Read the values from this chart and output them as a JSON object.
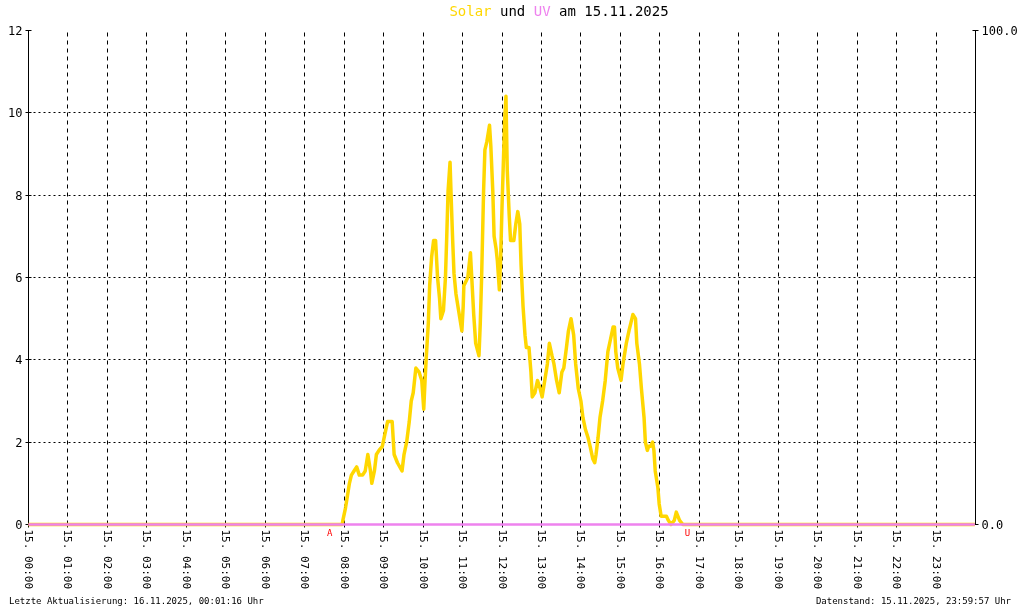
{
  "chart_data": {
    "type": "line",
    "title": "Solar und UV am 15.11.2025",
    "xlim": [
      "2025-11-15T00:00",
      "2025-11-16T00:00"
    ],
    "ylim": [
      0,
      12
    ],
    "yticks": [
      0,
      2,
      4,
      6,
      8,
      10,
      12
    ],
    "y2lim": [
      0,
      100
    ],
    "y2ticks": [
      {
        "value": 0,
        "label": "0.0"
      },
      {
        "value": 100,
        "label": "100.0"
      }
    ],
    "xticks": [
      {
        "value": "2025-11-15T00:00",
        "label": "15. 00:00"
      },
      {
        "value": "2025-11-15T01:00",
        "label": "15. 01:00"
      },
      {
        "value": "2025-11-15T02:00",
        "label": "15. 02:00"
      },
      {
        "value": "2025-11-15T03:00",
        "label": "15. 03:00"
      },
      {
        "value": "2025-11-15T04:00",
        "label": "15. 04:00"
      },
      {
        "value": "2025-11-15T05:00",
        "label": "15. 05:00"
      },
      {
        "value": "2025-11-15T06:00",
        "label": "15. 06:00"
      },
      {
        "value": "2025-11-15T07:00",
        "label": "15. 07:00"
      },
      {
        "value": "2025-11-15T08:00",
        "label": "15. 08:00"
      },
      {
        "value": "2025-11-15T09:00",
        "label": "15. 09:00"
      },
      {
        "value": "2025-11-15T10:00",
        "label": "15. 10:00"
      },
      {
        "value": "2025-11-15T11:00",
        "label": "15. 11:00"
      },
      {
        "value": "2025-11-15T12:00",
        "label": "15. 12:00"
      },
      {
        "value": "2025-11-15T13:00",
        "label": "15. 13:00"
      },
      {
        "value": "2025-11-15T14:00",
        "label": "15. 14:00"
      },
      {
        "value": "2025-11-15T15:00",
        "label": "15. 15:00"
      },
      {
        "value": "2025-11-15T16:00",
        "label": "15. 16:00"
      },
      {
        "value": "2025-11-15T17:00",
        "label": "15. 17:00"
      },
      {
        "value": "2025-11-15T18:00",
        "label": "15. 18:00"
      },
      {
        "value": "2025-11-15T19:00",
        "label": "15. 19:00"
      },
      {
        "value": "2025-11-15T20:00",
        "label": "15. 20:00"
      },
      {
        "value": "2025-11-15T21:00",
        "label": "15. 21:00"
      },
      {
        "value": "2025-11-15T22:00",
        "label": "15. 22:00"
      },
      {
        "value": "2025-11-15T23:00",
        "label": "15. 23:00"
      }
    ],
    "grid": true,
    "series": [
      {
        "color": "#ffd700",
        "x": [
          "2025-11-15T00:00",
          "2025-11-15T07:57",
          "2025-11-15T07:58",
          "2025-11-15T08:02",
          "2025-11-15T08:05",
          "2025-11-15T08:08",
          "2025-11-15T08:11",
          "2025-11-15T08:15",
          "2025-11-15T08:19",
          "2025-11-15T08:23",
          "2025-11-15T08:28",
          "2025-11-15T08:32",
          "2025-11-15T08:36",
          "2025-11-15T08:40",
          "2025-11-15T08:42",
          "2025-11-15T08:46",
          "2025-11-15T08:49",
          "2025-11-15T08:53",
          "2025-11-15T08:58",
          "2025-11-15T09:02",
          "2025-11-15T09:06",
          "2025-11-15T09:13",
          "2025-11-15T09:16",
          "2025-11-15T09:21",
          "2025-11-15T09:28",
          "2025-11-15T09:31",
          "2025-11-15T09:35",
          "2025-11-15T09:39",
          "2025-11-15T09:42",
          "2025-11-15T09:45",
          "2025-11-15T09:49",
          "2025-11-15T09:54",
          "2025-11-15T09:58",
          "2025-11-15T10:01",
          "2025-11-15T10:03",
          "2025-11-15T10:05",
          "2025-11-15T10:08",
          "2025-11-15T10:10",
          "2025-11-15T10:13",
          "2025-11-15T10:16",
          "2025-11-15T10:19",
          "2025-11-15T10:22",
          "2025-11-15T10:25",
          "2025-11-15T10:27",
          "2025-11-15T10:31",
          "2025-11-15T10:34",
          "2025-11-15T10:36",
          "2025-11-15T10:38",
          "2025-11-15T10:41",
          "2025-11-15T10:43",
          "2025-11-15T10:45",
          "2025-11-15T10:47",
          "2025-11-15T10:50",
          "2025-11-15T10:54",
          "2025-11-15T10:59",
          "2025-11-15T11:01",
          "2025-11-15T11:02",
          "2025-11-15T11:08",
          "2025-11-15T11:12",
          "2025-11-15T11:14",
          "2025-11-15T11:17",
          "2025-11-15T11:20",
          "2025-11-15T11:25",
          "2025-11-15T11:27",
          "2025-11-15T11:29",
          "2025-11-15T11:32",
          "2025-11-15T11:34",
          "2025-11-15T11:37",
          "2025-11-15T11:41",
          "2025-11-15T11:43",
          "2025-11-15T11:46",
          "2025-11-15T11:48",
          "2025-11-15T11:51",
          "2025-11-15T11:53",
          "2025-11-15T11:56",
          "2025-11-15T11:58",
          "2025-11-15T12:00",
          "2025-11-15T12:04",
          "2025-11-15T12:06",
          "2025-11-15T12:08",
          "2025-11-15T12:11",
          "2025-11-15T12:13",
          "2025-11-15T12:18",
          "2025-11-15T12:21",
          "2025-11-15T12:24",
          "2025-11-15T12:27",
          "2025-11-15T12:29",
          "2025-11-15T12:32",
          "2025-11-15T12:35",
          "2025-11-15T12:37",
          "2025-11-15T12:41",
          "2025-11-15T12:44",
          "2025-11-15T12:46",
          "2025-11-15T12:50",
          "2025-11-15T12:54",
          "2025-11-15T12:58",
          "2025-11-15T13:01",
          "2025-11-15T13:05",
          "2025-11-15T13:09",
          "2025-11-15T13:12",
          "2025-11-15T13:16",
          "2025-11-15T13:19",
          "2025-11-15T13:23",
          "2025-11-15T13:27",
          "2025-11-15T13:31",
          "2025-11-15T13:34",
          "2025-11-15T13:38",
          "2025-11-15T13:41",
          "2025-11-15T13:45",
          "2025-11-15T13:49",
          "2025-11-15T13:52",
          "2025-11-15T13:56",
          "2025-11-15T14:00",
          "2025-11-15T14:03",
          "2025-11-15T14:07",
          "2025-11-15T14:11",
          "2025-11-15T14:14",
          "2025-11-15T14:18",
          "2025-11-15T14:21",
          "2025-11-15T14:23",
          "2025-11-15T14:26",
          "2025-11-15T14:29",
          "2025-11-15T14:33",
          "2025-11-15T14:37",
          "2025-11-15T14:41",
          "2025-11-15T14:45",
          "2025-11-15T14:49",
          "2025-11-15T14:51",
          "2025-11-15T14:53",
          "2025-11-15T14:56",
          "2025-11-15T15:01",
          "2025-11-15T15:04",
          "2025-11-15T15:07",
          "2025-11-15T15:09",
          "2025-11-15T15:13",
          "2025-11-15T15:16",
          "2025-11-15T15:19",
          "2025-11-15T15:23",
          "2025-11-15T15:25",
          "2025-11-15T15:29",
          "2025-11-15T15:32",
          "2025-11-15T15:36",
          "2025-11-15T15:38",
          "2025-11-15T15:41",
          "2025-11-15T15:43",
          "2025-11-15T15:46",
          "2025-11-15T15:49",
          "2025-11-15T15:51",
          "2025-11-15T15:53",
          "2025-11-15T15:57",
          "2025-11-15T15:59",
          "2025-11-15T16:02",
          "2025-11-15T16:07",
          "2025-11-15T16:10",
          "2025-11-15T16:13",
          "2025-11-15T16:17",
          "2025-11-15T16:22",
          "2025-11-15T16:25",
          "2025-11-15T16:30",
          "2025-11-15T16:35",
          "2025-11-15T23:59"
        ],
        "values": [
          0,
          0,
          0.1,
          0.4,
          0.7,
          1.0,
          1.2,
          1.3,
          1.4,
          1.2,
          1.2,
          1.3,
          1.7,
          1.3,
          1.0,
          1.3,
          1.7,
          1.8,
          1.9,
          2.2,
          2.5,
          2.5,
          1.7,
          1.5,
          1.3,
          1.7,
          2.0,
          2.5,
          3.0,
          3.2,
          3.8,
          3.7,
          3.5,
          2.8,
          3.5,
          4.1,
          4.9,
          5.8,
          6.5,
          6.9,
          6.9,
          6.0,
          5.5,
          5.0,
          5.2,
          6.0,
          7.0,
          8.1,
          8.8,
          7.8,
          6.9,
          6.1,
          5.6,
          5.2,
          4.7,
          5.3,
          5.8,
          6.0,
          6.6,
          6.0,
          5.1,
          4.4,
          4.1,
          4.9,
          6.0,
          8.1,
          9.1,
          9.3,
          9.7,
          9.2,
          8.1,
          7.0,
          6.7,
          6.4,
          5.7,
          6.5,
          7.7,
          9.8,
          10.4,
          8.6,
          7.5,
          6.9,
          6.9,
          7.3,
          7.6,
          7.3,
          6.3,
          5.3,
          4.6,
          4.3,
          4.3,
          3.7,
          3.1,
          3.2,
          3.5,
          3.3,
          3.1,
          3.5,
          3.9,
          4.4,
          4.1,
          3.9,
          3.5,
          3.2,
          3.7,
          3.8,
          4.3,
          4.7,
          5.0,
          4.6,
          3.9,
          3.3,
          3.0,
          2.6,
          2.3,
          2.1,
          1.9,
          1.6,
          1.5,
          1.7,
          2.1,
          2.6,
          3.0,
          3.5,
          4.2,
          4.5,
          4.8,
          4.8,
          4.2,
          3.8,
          3.5,
          3.9,
          4.2,
          4.4,
          4.7,
          4.9,
          5.1,
          5.0,
          4.4,
          3.9,
          3.3,
          2.6,
          2.0,
          1.8,
          1.9,
          1.9,
          2.0,
          1.8,
          1.3,
          0.9,
          0.5,
          0.2,
          0.2,
          0.2,
          0.1,
          0,
          0.1,
          0.3,
          0.1,
          0,
          0
        ]
      },
      {
        "color": "#ee82ee",
        "x": [
          "2025-11-15T00:00",
          "2025-11-15T23:59"
        ],
        "values": [
          0,
          0
        ]
      }
    ],
    "annotations": [
      "Letzte Aktualisierung: 16.11.2025, 00:01:16 Uhr",
      "Datenstand: 15.11.2025, 23:59:57 Uhr",
      {
        "text": "A",
        "x": "2025-11-15T07:38",
        "y": 0
      },
      {
        "text": "U",
        "x": "2025-11-15T16:42",
        "y": 0
      }
    ]
  }
}
